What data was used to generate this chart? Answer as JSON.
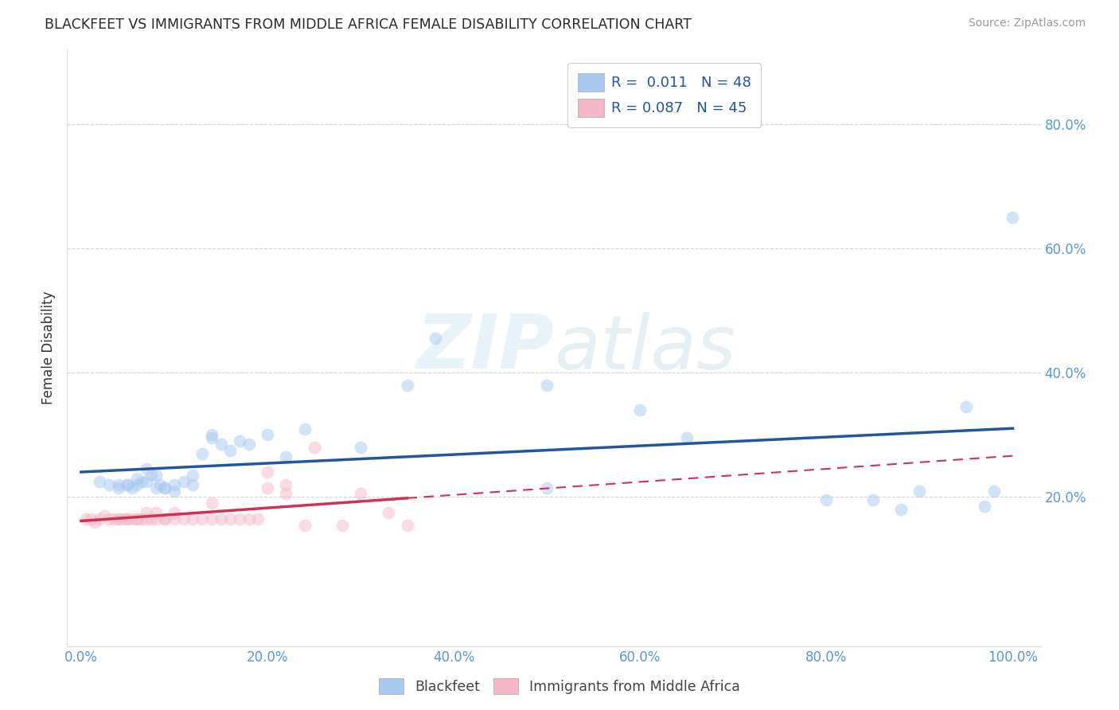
{
  "title": "BLACKFEET VS IMMIGRANTS FROM MIDDLE AFRICA FEMALE DISABILITY CORRELATION CHART",
  "source": "Source: ZipAtlas.com",
  "ylabel": "Female Disability",
  "xlim": [
    0.0,
    1.0
  ],
  "ylim": [
    -0.04,
    0.92
  ],
  "xtick_labels": [
    "0.0%",
    "20.0%",
    "40.0%",
    "60.0%",
    "80.0%",
    "100.0%"
  ],
  "xtick_vals": [
    0.0,
    0.2,
    0.4,
    0.6,
    0.8,
    1.0
  ],
  "ytick_labels": [
    "20.0%",
    "40.0%",
    "60.0%",
    "80.0%"
  ],
  "ytick_vals": [
    0.2,
    0.4,
    0.6,
    0.8
  ],
  "legend_line1": "R =  0.011   N = 48",
  "legend_line2": "R = 0.087   N = 45",
  "blue_scatter_x": [
    0.02,
    0.03,
    0.04,
    0.05,
    0.055,
    0.06,
    0.065,
    0.07,
    0.075,
    0.08,
    0.085,
    0.09,
    0.1,
    0.11,
    0.12,
    0.13,
    0.14,
    0.15,
    0.16,
    0.17,
    0.18,
    0.2,
    0.22,
    0.24,
    0.3,
    0.35,
    0.38,
    0.5,
    0.6,
    0.65,
    0.8,
    0.85,
    0.88,
    0.9,
    0.95,
    0.97,
    0.98,
    1.0,
    0.04,
    0.05,
    0.06,
    0.07,
    0.08,
    0.09,
    0.1,
    0.12,
    0.14,
    0.5
  ],
  "blue_scatter_y": [
    0.225,
    0.22,
    0.22,
    0.22,
    0.215,
    0.23,
    0.225,
    0.245,
    0.235,
    0.235,
    0.22,
    0.215,
    0.22,
    0.225,
    0.235,
    0.27,
    0.3,
    0.285,
    0.275,
    0.29,
    0.285,
    0.3,
    0.265,
    0.31,
    0.28,
    0.38,
    0.455,
    0.38,
    0.34,
    0.295,
    0.195,
    0.195,
    0.18,
    0.21,
    0.345,
    0.185,
    0.21,
    0.65,
    0.215,
    0.22,
    0.22,
    0.225,
    0.215,
    0.215,
    0.21,
    0.22,
    0.295,
    0.215
  ],
  "pink_scatter_x": [
    0.005,
    0.01,
    0.015,
    0.02,
    0.025,
    0.03,
    0.035,
    0.04,
    0.045,
    0.05,
    0.055,
    0.06,
    0.065,
    0.07,
    0.075,
    0.08,
    0.09,
    0.1,
    0.11,
    0.12,
    0.13,
    0.14,
    0.15,
    0.16,
    0.17,
    0.18,
    0.19,
    0.2,
    0.22,
    0.24,
    0.25,
    0.28,
    0.3,
    0.33,
    0.35,
    0.04,
    0.05,
    0.06,
    0.07,
    0.08,
    0.09,
    0.1,
    0.14,
    0.2,
    0.22
  ],
  "pink_scatter_y": [
    0.165,
    0.165,
    0.16,
    0.165,
    0.17,
    0.165,
    0.165,
    0.165,
    0.165,
    0.165,
    0.165,
    0.165,
    0.165,
    0.175,
    0.165,
    0.175,
    0.165,
    0.165,
    0.165,
    0.165,
    0.165,
    0.165,
    0.165,
    0.165,
    0.165,
    0.165,
    0.165,
    0.24,
    0.205,
    0.155,
    0.28,
    0.155,
    0.205,
    0.175,
    0.155,
    0.165,
    0.165,
    0.165,
    0.165,
    0.165,
    0.165,
    0.175,
    0.19,
    0.215,
    0.22
  ],
  "blue_color": "#a8c8f0",
  "pink_color": "#f5b8c8",
  "blue_line_color": "#2255a0",
  "pink_line_color": "#cc3355",
  "marker_size": 130,
  "marker_alpha": 0.5,
  "background_color": "#ffffff",
  "grid_color": "#cccccc",
  "title_color": "#2a2a2a",
  "source_color": "#999999",
  "tick_label_color": "#5599dd",
  "ylabel_color": "#333333",
  "watermark_color": "#d5eaf5",
  "watermark_alpha": 0.55
}
